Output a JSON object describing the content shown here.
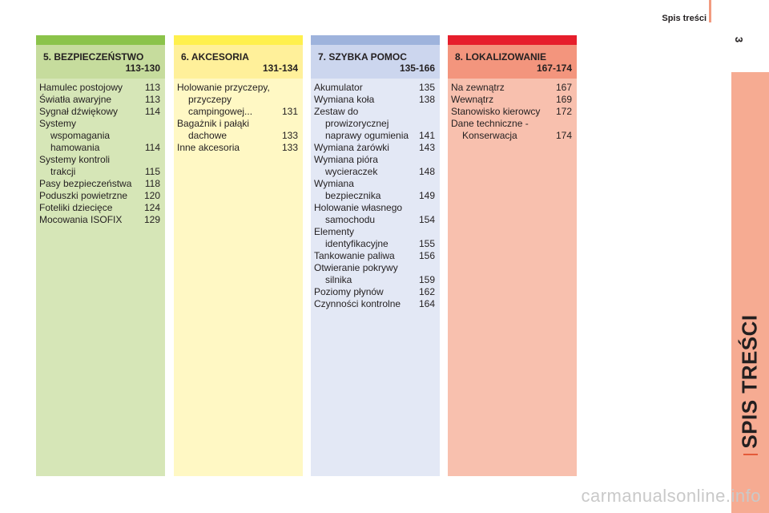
{
  "header": {
    "title": "Spis treści",
    "page_number": "3"
  },
  "side_tab": {
    "label": "SPIS TREŚCI"
  },
  "columns": [
    {
      "title": "5. BEZPIECZEŃSTWO",
      "range": "113-130",
      "items": [
        {
          "label": "Hamulec postojowy",
          "page": "113"
        },
        {
          "label": "Światła awaryjne",
          "page": "113"
        },
        {
          "label": "Sygnał dźwiękowy",
          "page": "114"
        },
        {
          "label": "Systemy wspomagania hamowania",
          "page": "114"
        },
        {
          "label": "Systemy kontroli trakcji",
          "page": "115"
        },
        {
          "label": "Pasy bezpieczeństwa",
          "page": "118"
        },
        {
          "label": "Poduszki powietrzne",
          "page": "120"
        },
        {
          "label": "Foteliki dziecięce",
          "page": "124"
        },
        {
          "label": "Mocowania ISOFIX",
          "page": "129"
        }
      ]
    },
    {
      "title": "6. AKCESORIA",
      "range": "131-134",
      "items": [
        {
          "label": "Holowanie przyczepy, przyczepy campingowej...",
          "page": "131"
        },
        {
          "label": "Bagażnik i pałąki dachowe",
          "page": "133"
        },
        {
          "label": "Inne akcesoria",
          "page": "133"
        }
      ]
    },
    {
      "title": "7. SZYBKA POMOC",
      "range": "135-166",
      "items": [
        {
          "label": "Akumulator",
          "page": "135"
        },
        {
          "label": "Wymiana koła",
          "page": "138"
        },
        {
          "label": "Zestaw do prowizorycznej naprawy ogumienia",
          "page": "141"
        },
        {
          "label": "Wymiana żarówki",
          "page": "143"
        },
        {
          "label": "Wymiana pióra wycieraczek",
          "page": "148"
        },
        {
          "label": "Wymiana bezpiecznika",
          "page": "149"
        },
        {
          "label": "Holowanie własnego samochodu",
          "page": "154"
        },
        {
          "label": "Elementy identyfikacyjne",
          "page": "155"
        },
        {
          "label": "Tankowanie paliwa",
          "page": "156"
        },
        {
          "label": "Otwieranie pokrywy silnika",
          "page": "159"
        },
        {
          "label": "Poziomy płynów",
          "page": "162"
        },
        {
          "label": "Czynności kontrolne",
          "page": "164"
        }
      ]
    },
    {
      "title": "8. LOKALIZOWANIE",
      "range": "167-174",
      "items": [
        {
          "label": "Na zewnątrz",
          "page": "167"
        },
        {
          "label": "Wewnątrz",
          "page": "169"
        },
        {
          "label": "Stanowisko kierowcy",
          "page": "172"
        },
        {
          "label": "Dane techniczne - Konserwacja",
          "page": "174"
        }
      ]
    }
  ],
  "watermark": "carmanualsonline.info",
  "colors": {
    "col5_bg": "#d6e6b7",
    "col5_bar": "#8bc34a",
    "col5_head": "#c6dc9d",
    "col6_bg": "#fff8c4",
    "col6_bar": "#fff04d",
    "col6_head": "#fff09a",
    "col7_bg": "#e3e8f5",
    "col7_bar": "#9eb3dc",
    "col7_head": "#ccd6ee",
    "col8_bg": "#f8c0ae",
    "col8_bar": "#e61e2b",
    "col8_head": "#f3957d"
  }
}
